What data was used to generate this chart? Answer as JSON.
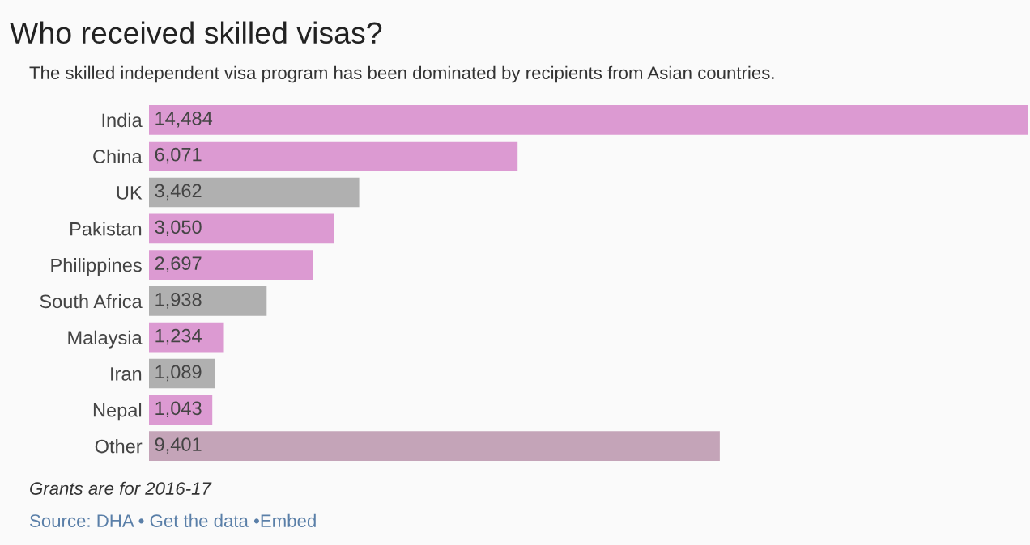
{
  "chart_data": {
    "type": "bar",
    "orientation": "horizontal",
    "title": "Who received skilled visas?",
    "subtitle": "The skilled independent visa program has been dominated by recipients from Asian countries.",
    "categories": [
      "India",
      "China",
      "UK",
      "Pakistan",
      "Philippines",
      "South Africa",
      "Malaysia",
      "Iran",
      "Nepal",
      "Other"
    ],
    "values": [
      14484,
      6071,
      3462,
      3050,
      2697,
      1938,
      1234,
      1089,
      1043,
      9401
    ],
    "colors": [
      "#dc9ad2",
      "#dc9ad2",
      "#b0b0b0",
      "#dc9ad2",
      "#dc9ad2",
      "#b0b0b0",
      "#dc9ad2",
      "#b0b0b0",
      "#dc9ad2",
      "#c4a4b8"
    ],
    "value_labels": [
      "14,484",
      "6,071",
      "3,462",
      "3,050",
      "2,697",
      "1,938",
      "1,234",
      "1,089",
      "1,043",
      "9,401"
    ],
    "annotations": [
      "Grants are for 2016-17",
      "Source: DHA • Get the data •Embed"
    ],
    "grid": false,
    "legend": false
  }
}
